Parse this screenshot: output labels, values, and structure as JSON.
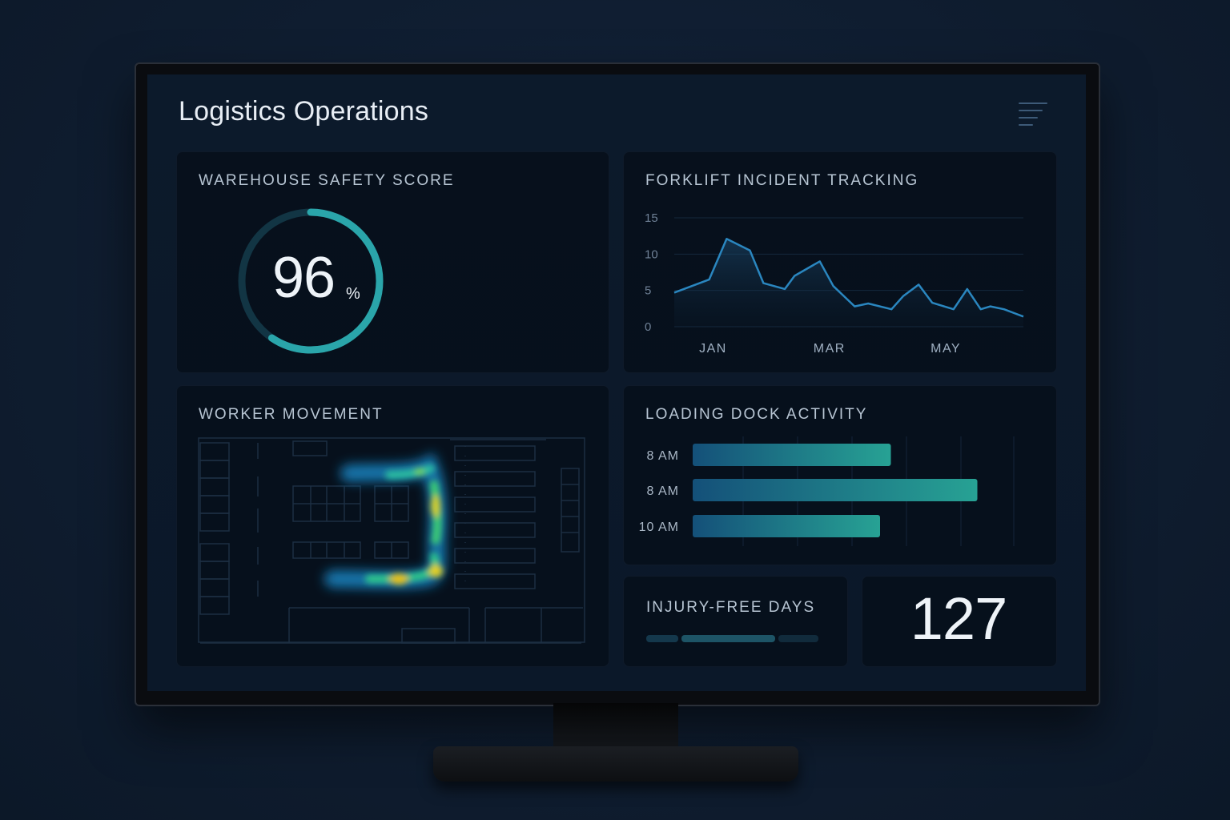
{
  "header": {
    "title": "Logistics Operations",
    "menu_icon": "hamburger-menu-icon"
  },
  "safety": {
    "title": "WAREHOUSE SAFETY SCORE",
    "value": "96",
    "unit": "%",
    "progress": 0.96,
    "ring_color": "#2aa5aa"
  },
  "forklift": {
    "title": "FORKLIFT INCIDENT TRACKING"
  },
  "worker": {
    "title": "WORKER MOVEMENT"
  },
  "dock": {
    "title": "LOADING DOCK ACTIVITY"
  },
  "injury": {
    "title": "INJURY-FREE DAYS",
    "value": "127"
  },
  "chart_data": [
    {
      "type": "area",
      "title": "FORKLIFT INCIDENT TRACKING",
      "ylim": [
        0,
        15
      ],
      "yticks": [
        "15",
        "10",
        "5",
        "0"
      ],
      "ytick_values": [
        15,
        10,
        5,
        0
      ],
      "xticks": [
        "JAN",
        "MAR",
        "MAY"
      ],
      "xtick_positions": [
        2,
        8,
        14
      ],
      "x": [
        0,
        1.8,
        2.7,
        3.9,
        4.6,
        5.7,
        6.2,
        7.5,
        8.2,
        9.3,
        10.0,
        11.2,
        11.8,
        12.6,
        13.3,
        14.4,
        15.1,
        15.8,
        16.3,
        17.0,
        18.0
      ],
      "values": [
        4.7,
        6.5,
        12.1,
        10.5,
        6.0,
        5.2,
        7.0,
        9.0,
        5.6,
        2.8,
        3.2,
        2.4,
        4.2,
        5.8,
        3.3,
        2.4,
        5.2,
        2.4,
        2.8,
        2.4,
        1.4
      ],
      "line_color": "#2a86bf",
      "grid": true
    },
    {
      "type": "bar",
      "orientation": "horizontal",
      "title": "LOADING DOCK ACTIVITY",
      "categories": [
        "8 AM",
        "8 AM",
        "10 AM"
      ],
      "values": [
        0.55,
        0.79,
        0.52
      ],
      "xlim": [
        0,
        1
      ],
      "bar_gradient": [
        "#145079",
        "#27a294"
      ]
    }
  ]
}
